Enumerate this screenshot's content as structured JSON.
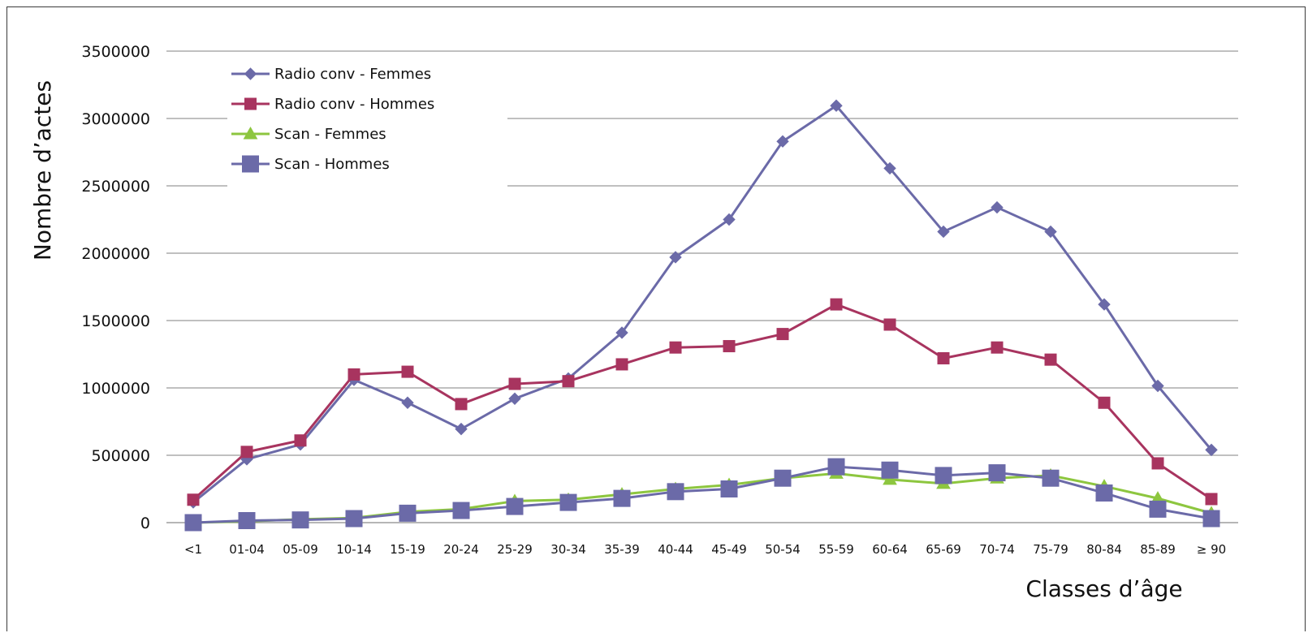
{
  "chart_data": {
    "type": "line",
    "title": "",
    "xlabel": "Classes d’âge",
    "ylabel": "Nombre  d’actes",
    "ylim": [
      0,
      3500000
    ],
    "yticks": [
      0,
      500000,
      1000000,
      1500000,
      2000000,
      2500000,
      3000000,
      3500000
    ],
    "ytick_labels": [
      "0",
      "500000",
      "1000000",
      "1500000",
      "2000000",
      "2500000",
      "3000000",
      "3500000"
    ],
    "grid": "horizontal",
    "legend_position": "top-left",
    "categories": [
      "<1",
      "01-04",
      "05-09",
      "10-14",
      "15-19",
      "20-24",
      "25-29",
      "30-34",
      "35-39",
      "40-44",
      "45-49",
      "50-54",
      "55-59",
      "60-64",
      "65-69",
      "70-74",
      "75-79",
      "80-84",
      "85-89",
      "≥ 90"
    ],
    "series": [
      {
        "name": "Radio conv - Femmes",
        "color": "#6b6aa8",
        "marker": "diamond",
        "values": [
          150000,
          470000,
          580000,
          1060000,
          890000,
          695000,
          920000,
          1070000,
          1410000,
          1970000,
          2250000,
          2830000,
          3095000,
          2630000,
          2160000,
          2340000,
          2160000,
          1620000,
          1015000,
          540000
        ]
      },
      {
        "name": "Radio conv - Hommes",
        "color": "#a8345f",
        "marker": "square",
        "values": [
          170000,
          525000,
          610000,
          1100000,
          1120000,
          880000,
          1030000,
          1050000,
          1175000,
          1300000,
          1310000,
          1400000,
          1620000,
          1470000,
          1220000,
          1300000,
          1210000,
          890000,
          440000,
          175000
        ]
      },
      {
        "name": "Scan - Femmes",
        "color": "#8dc63f",
        "marker": "triangle",
        "values": [
          0,
          10000,
          25000,
          35000,
          80000,
          100000,
          160000,
          170000,
          210000,
          250000,
          280000,
          330000,
          365000,
          320000,
          290000,
          330000,
          350000,
          270000,
          180000,
          70000
        ]
      },
      {
        "name": "Scan - Hommes",
        "color": "#6b6aa8",
        "marker": "big-square",
        "values": [
          0,
          15000,
          20000,
          30000,
          70000,
          90000,
          120000,
          150000,
          180000,
          230000,
          250000,
          330000,
          415000,
          390000,
          350000,
          370000,
          330000,
          220000,
          100000,
          30000
        ]
      }
    ]
  }
}
